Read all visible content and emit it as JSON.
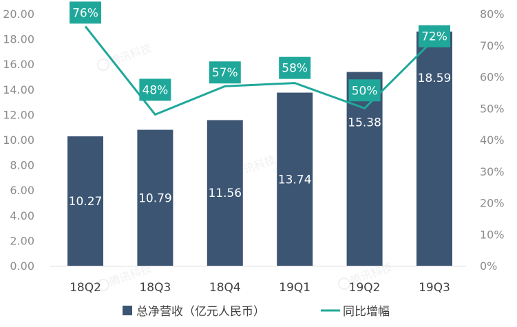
{
  "chart_data": {
    "type": "bar",
    "categories": [
      "18Q2",
      "18Q3",
      "18Q4",
      "19Q1",
      "19Q2",
      "19Q3"
    ],
    "series": [
      {
        "name": "总净营收（亿元人民币）",
        "type": "bar",
        "axis": "left",
        "values": [
          10.27,
          10.79,
          11.56,
          13.74,
          15.38,
          18.59
        ],
        "labels": [
          "10.27",
          "10.79",
          "11.56",
          "13.74",
          "15.38",
          "18.59"
        ]
      },
      {
        "name": "同比增幅",
        "type": "line",
        "axis": "right",
        "values": [
          76,
          48,
          57,
          58,
          50,
          72
        ],
        "labels": [
          "76%",
          "48%",
          "57%",
          "58%",
          "50%",
          "72%"
        ]
      }
    ],
    "y_left": {
      "ylim": [
        0,
        20
      ],
      "ticks": [
        "0.00",
        "2.00",
        "4.00",
        "6.00",
        "8.00",
        "10.00",
        "12.00",
        "14.00",
        "16.00",
        "18.00",
        "20.00"
      ]
    },
    "y_right": {
      "ylim": [
        0,
        80
      ],
      "ticks": [
        "0%",
        "10%",
        "20%",
        "30%",
        "40%",
        "50%",
        "60%",
        "70%",
        "80%"
      ]
    },
    "grid": false,
    "legend": "bottom",
    "colors": {
      "bar": "#3c5573",
      "line": "#1fa89a",
      "label_box": "#1fa89a"
    },
    "watermark": "腾讯科技"
  }
}
